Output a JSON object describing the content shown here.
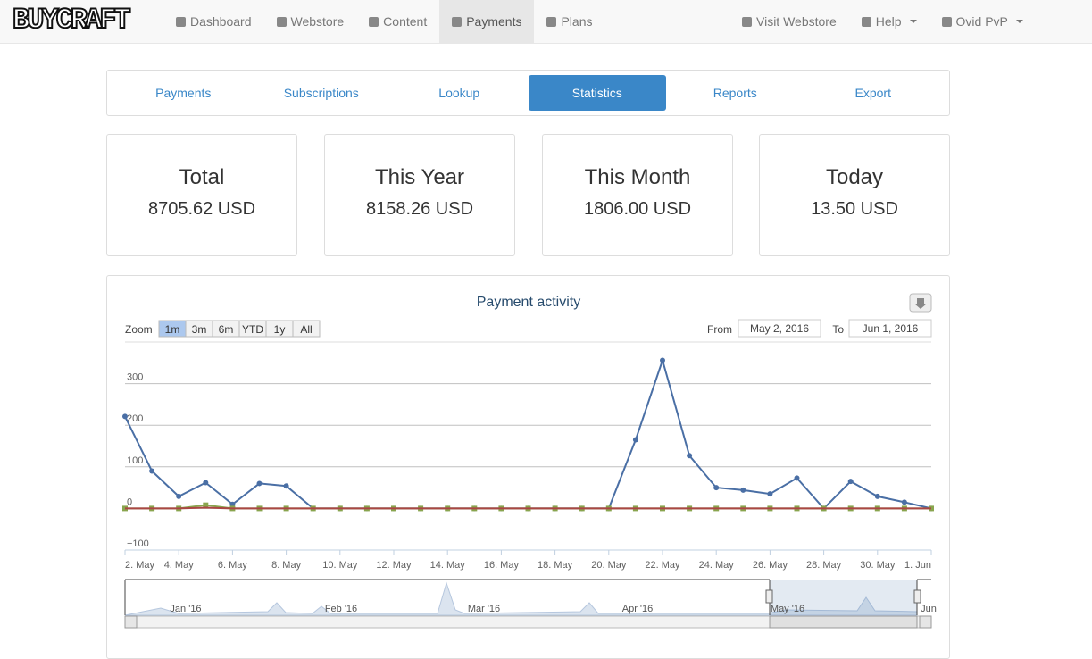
{
  "nav": {
    "brand": "BUYCRAFT",
    "left": [
      "Dashboard",
      "Webstore",
      "Content",
      "Payments",
      "Plans"
    ],
    "active": 3,
    "right": [
      "Visit Webstore",
      "Help",
      "Ovid PvP"
    ]
  },
  "tabs": {
    "items": [
      "Payments",
      "Subscriptions",
      "Lookup",
      "Statistics",
      "Reports",
      "Export"
    ],
    "active": 3
  },
  "stats": [
    {
      "label": "Total",
      "value": "8705.62 USD"
    },
    {
      "label": "This Year",
      "value": "8158.26 USD"
    },
    {
      "label": "This Month",
      "value": "1806.00 USD"
    },
    {
      "label": "Today",
      "value": "13.50 USD"
    }
  ],
  "chart_data": {
    "type": "line",
    "title": "Payment activity",
    "zoom_label": "Zoom",
    "zoom_buttons": [
      "1m",
      "3m",
      "6m",
      "YTD",
      "1y",
      "All"
    ],
    "zoom_active": 0,
    "from_label": "From",
    "from": "May 2, 2016",
    "to_label": "To",
    "to": "Jun 1, 2016",
    "categories": [
      "2. May",
      null,
      "4. May",
      null,
      "6. May",
      null,
      "8. May",
      null,
      "10. May",
      null,
      "12. May",
      null,
      "14. May",
      null,
      "16. May",
      null,
      "18. May",
      null,
      "20. May",
      null,
      "22. May",
      null,
      "24. May",
      null,
      "26. May",
      null,
      "28. May",
      null,
      "30. May",
      null,
      "1. Jun"
    ],
    "series": [
      {
        "color": "#4a6fa5",
        "marker": "circle",
        "values": [
          221,
          90,
          29,
          62,
          10,
          60,
          54,
          0,
          0,
          0,
          0,
          0,
          0,
          0,
          0,
          0,
          0,
          0,
          0,
          165,
          356,
          127,
          50,
          44,
          35,
          73,
          0,
          65,
          29,
          15,
          0
        ]
      },
      {
        "color": "#89a54e",
        "marker": "square",
        "values": [
          0,
          0,
          0,
          8,
          0,
          0,
          0,
          0,
          0,
          0,
          0,
          0,
          0,
          0,
          0,
          0,
          0,
          0,
          0,
          0,
          0,
          0,
          0,
          0,
          0,
          0,
          0,
          0,
          0,
          0,
          0
        ]
      },
      {
        "color": "#aa4643",
        "marker": "none",
        "values": [
          0,
          0,
          0,
          2,
          0,
          0,
          0,
          0,
          0,
          0,
          0,
          0,
          0,
          0,
          0,
          0,
          0,
          0,
          0,
          0,
          0,
          0,
          0,
          0,
          0,
          0,
          0,
          0,
          0,
          0,
          0
        ]
      }
    ],
    "ylim": [
      -100,
      400
    ],
    "yticks": [
      {
        "value": -100,
        "label": "−100"
      },
      0,
      100,
      200,
      300
    ],
    "grid": true,
    "navigator_labels": [
      "Jan '16",
      "Feb '16",
      "Mar '16",
      "Apr '16",
      "May '16",
      "Jun"
    ]
  }
}
